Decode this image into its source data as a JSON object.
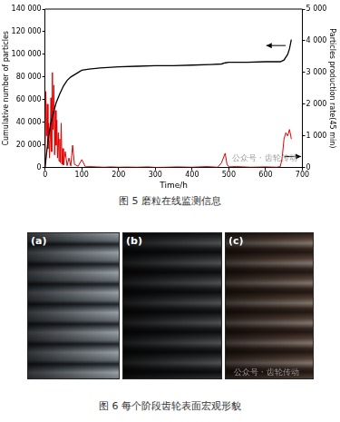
{
  "chart_data": {
    "type": "line",
    "xlabel": "Time/h",
    "ylabel": "Cumulative number of particles",
    "y2label": "Particles production rate(45 min)",
    "xlim": [
      0,
      700
    ],
    "xticks": [
      0,
      100,
      200,
      300,
      400,
      500,
      600,
      700
    ],
    "ylim": [
      0,
      140000
    ],
    "yticks": [
      0,
      {
        "value": 20000,
        "label": "20 000"
      },
      {
        "value": 40000,
        "label": "40 000"
      },
      {
        "value": 60000,
        "label": "60 000"
      },
      {
        "value": 80000,
        "label": "80 000"
      },
      {
        "value": 100000,
        "label": "100 000"
      },
      {
        "value": 120000,
        "label": "120 000"
      },
      {
        "value": 140000,
        "label": "140 000"
      }
    ],
    "y2lim": [
      0,
      5000
    ],
    "y2ticks": [
      0,
      {
        "value": 1000,
        "label": "1 000"
      },
      {
        "value": 2000,
        "label": "2 000"
      },
      {
        "value": 3000,
        "label": "3 000"
      },
      {
        "value": 4000,
        "label": "4 000"
      },
      {
        "value": 5000,
        "label": "5 000"
      }
    ],
    "grid": false,
    "series": [
      {
        "color": "#000000",
        "axis": "y",
        "x": [
          0,
          5,
          10,
          15,
          20,
          30,
          40,
          50,
          60,
          70,
          80,
          90,
          100,
          120,
          150,
          200,
          250,
          300,
          350,
          400,
          450,
          480,
          490,
          500,
          550,
          600,
          640,
          650,
          660,
          665,
          670
        ],
        "values": [
          0,
          15000,
          28000,
          38000,
          45000,
          57000,
          65000,
          72000,
          77000,
          80000,
          82000,
          84000,
          86000,
          87000,
          88000,
          89000,
          89500,
          90000,
          90000,
          90500,
          91000,
          91500,
          92500,
          93000,
          93000,
          93500,
          93500,
          95000,
          100000,
          105000,
          113000
        ]
      },
      {
        "color": "#e00000",
        "axis": "y2",
        "x": [
          0,
          2,
          4,
          6,
          8,
          10,
          12,
          14,
          16,
          18,
          20,
          22,
          24,
          26,
          28,
          30,
          32,
          34,
          36,
          38,
          40,
          42,
          44,
          46,
          48,
          50,
          55,
          60,
          65,
          70,
          75,
          80,
          90,
          100,
          110,
          120,
          140,
          160,
          180,
          200,
          220,
          250,
          280,
          300,
          330,
          360,
          400,
          440,
          470,
          480,
          490,
          495,
          500,
          520,
          560,
          600,
          630,
          640,
          645,
          650,
          655,
          660,
          665,
          670
        ],
        "values": [
          0,
          2400,
          1000,
          2000,
          600,
          1400,
          300,
          900,
          2200,
          500,
          3000,
          1200,
          2600,
          400,
          1800,
          700,
          1500,
          300,
          1100,
          200,
          900,
          150,
          1400,
          100,
          600,
          80,
          500,
          60,
          300,
          50,
          700,
          100,
          40,
          250,
          20,
          30,
          20,
          10,
          20,
          10,
          15,
          10,
          20,
          5,
          10,
          20,
          10,
          30,
          10,
          150,
          450,
          100,
          20,
          30,
          10,
          20,
          10,
          30,
          300,
          900,
          1100,
          1000,
          1200,
          900
        ]
      }
    ]
  },
  "figure5_caption": "图 5 磨粒在线监测信息",
  "figure6": {
    "panels": [
      "(a)",
      "(b)",
      "(c)"
    ],
    "caption": "图 6 每个阶段齿轮表面宏观形貌"
  },
  "watermark": "公众号 · 齿轮传动"
}
